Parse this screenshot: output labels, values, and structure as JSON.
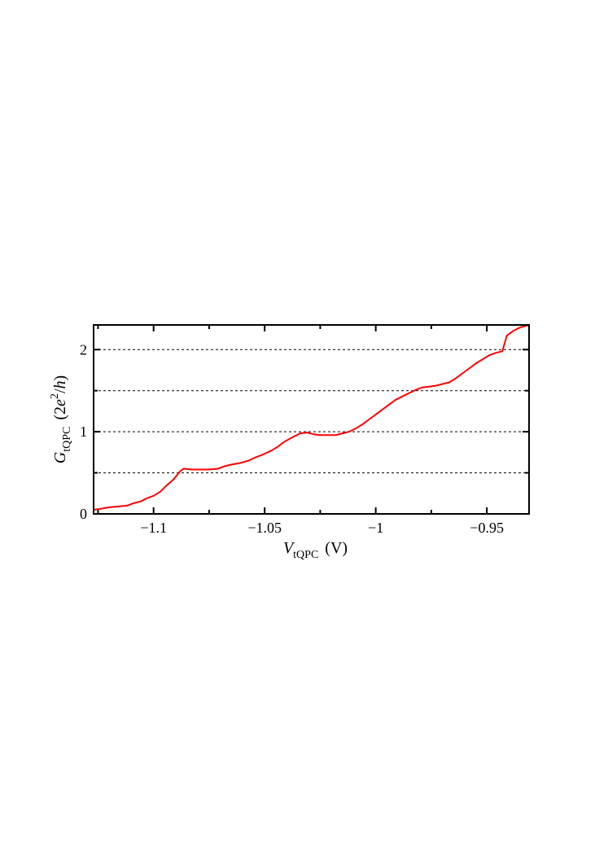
{
  "chart_data": {
    "type": "line",
    "title": "",
    "xlabel": {
      "main": "V",
      "sub": "tQPC",
      "unit": "(V)"
    },
    "ylabel": {
      "main": "G",
      "sub": "tQPC",
      "unit_prefix": "(2",
      "unit_e": "e",
      "unit_exp": "2",
      "unit_slash": "/",
      "unit_h": "h",
      "unit_suffix": ")"
    },
    "xlim": [
      -1.127,
      -0.931
    ],
    "ylim": [
      0,
      2.3
    ],
    "xticks": [
      {
        "value": -1.1,
        "label": "−1.1"
      },
      {
        "value": -1.05,
        "label": "−1.05"
      },
      {
        "value": -1.0,
        "label": "−1"
      },
      {
        "value": -0.95,
        "label": "−0.95"
      }
    ],
    "xminor": [
      -1.125,
      -1.075,
      -1.025,
      -0.975
    ],
    "yticks": [
      {
        "value": 0,
        "label": "0"
      },
      {
        "value": 1,
        "label": "1"
      },
      {
        "value": 2,
        "label": "2"
      }
    ],
    "yminor": [
      0.5,
      1.5
    ],
    "hlines": [
      0.5,
      1.0,
      1.5,
      2.0
    ],
    "line_color": "#ff0000",
    "grid_color": "#000000",
    "series": [
      {
        "x": [
          -1.127,
          -1.124,
          -1.12,
          -1.116,
          -1.112,
          -1.109,
          -1.106,
          -1.103,
          -1.1,
          -1.097,
          -1.094,
          -1.091,
          -1.088,
          -1.0865,
          -1.083,
          -1.079,
          -1.075,
          -1.071,
          -1.068,
          -1.065,
          -1.061,
          -1.057,
          -1.054,
          -1.051,
          -1.047,
          -1.044,
          -1.041,
          -1.037,
          -1.034,
          -1.031,
          -1.028,
          -1.025,
          -1.022,
          -1.018,
          -1.015,
          -1.012,
          -1.009,
          -1.006,
          -1.003,
          -1.0,
          -0.997,
          -0.994,
          -0.991,
          -0.988,
          -0.985,
          -0.982,
          -0.979,
          -0.976,
          -0.973,
          -0.97,
          -0.967,
          -0.964,
          -0.961,
          -0.958,
          -0.955,
          -0.952,
          -0.949,
          -0.946,
          -0.943,
          -0.941,
          -0.938,
          -0.935,
          -0.931
        ],
        "y": [
          0.05,
          0.06,
          0.08,
          0.09,
          0.1,
          0.13,
          0.15,
          0.19,
          0.22,
          0.27,
          0.35,
          0.42,
          0.52,
          0.55,
          0.54,
          0.54,
          0.54,
          0.55,
          0.58,
          0.6,
          0.62,
          0.65,
          0.69,
          0.72,
          0.77,
          0.82,
          0.88,
          0.94,
          0.98,
          0.99,
          0.97,
          0.96,
          0.96,
          0.96,
          0.98,
          1.0,
          1.04,
          1.09,
          1.15,
          1.21,
          1.27,
          1.33,
          1.39,
          1.43,
          1.47,
          1.51,
          1.54,
          1.55,
          1.56,
          1.58,
          1.6,
          1.65,
          1.71,
          1.77,
          1.83,
          1.88,
          1.93,
          1.96,
          1.98,
          2.17,
          2.23,
          2.27,
          2.3
        ]
      }
    ],
    "grid": false,
    "legend": "none"
  }
}
